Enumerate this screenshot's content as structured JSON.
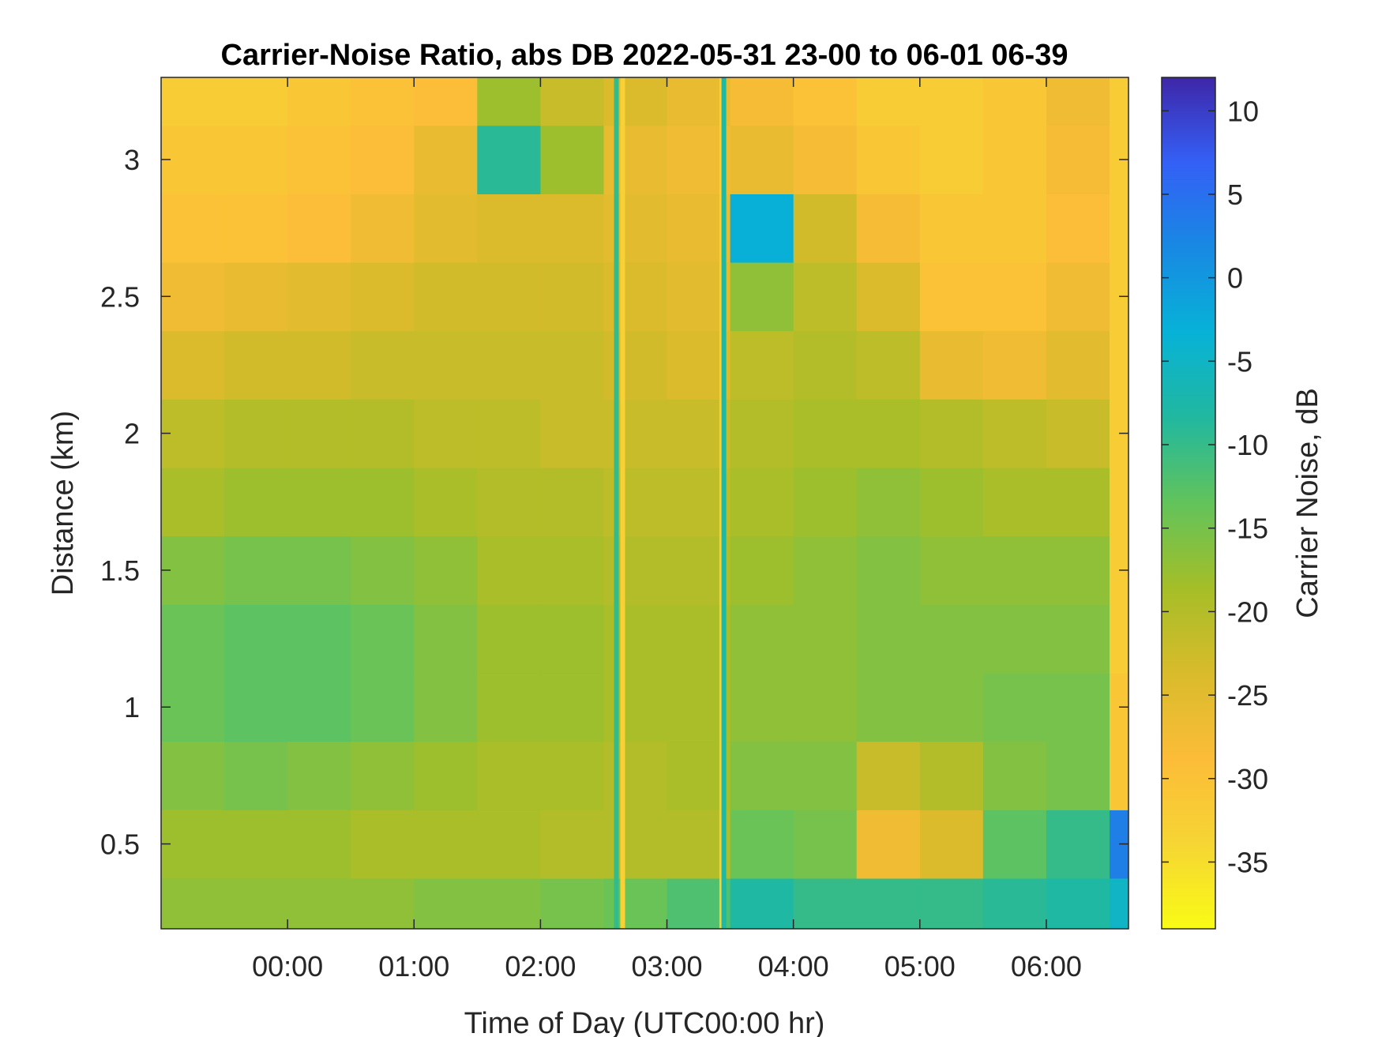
{
  "chart_data": {
    "type": "heatmap",
    "title": "Carrier-Noise Ratio, abs DB 2022-05-31 23-00 to 06-01 06-39",
    "xlabel": "Time of Day (UTC00:00 hr)",
    "ylabel": "Distance (km)",
    "colorbar_label": "Carrier Noise, dB",
    "xlim": [
      "2022-05-31 23:00",
      "2022-06-01 06:39"
    ],
    "ylim": [
      0.19,
      3.3
    ],
    "clim": [
      -39,
      12
    ],
    "x_ticks": [
      "00:00",
      "01:00",
      "02:00",
      "03:00",
      "04:00",
      "05:00",
      "06:00"
    ],
    "y_ticks": [
      "0.5",
      "1",
      "1.5",
      "2",
      "2.5",
      "3"
    ],
    "colorbar_ticks": [
      "10",
      "5",
      "0",
      "-5",
      "-10",
      "-15",
      "-20",
      "-25",
      "-30",
      "-35"
    ],
    "colormap": "parula-reversed",
    "time_hours": [
      23.0,
      23.5,
      0.0,
      0.5,
      1.0,
      1.5,
      2.0,
      2.5,
      3.0,
      3.5,
      4.0,
      4.5,
      5.0,
      5.5,
      6.0,
      6.5
    ],
    "distance_km": [
      0.25,
      0.5,
      0.75,
      1.0,
      1.25,
      1.5,
      1.75,
      2.0,
      2.25,
      2.5,
      2.75,
      3.0,
      3.25
    ],
    "values_db": [
      [
        -17,
        -17,
        -17,
        -17,
        -16,
        -16,
        -15,
        -14,
        -12,
        -8,
        -10,
        -10,
        -10,
        -9,
        -8,
        -5
      ],
      [
        -18,
        -18,
        -18,
        -19,
        -19,
        -19,
        -20,
        -20,
        -20,
        -14,
        -15,
        -27,
        -24,
        -13,
        -10,
        3
      ],
      [
        -16,
        -15,
        -16,
        -17,
        -18,
        -19,
        -19,
        -20,
        -19,
        -16,
        -16,
        -22,
        -20,
        -16,
        -15,
        -31
      ],
      [
        -14,
        -13,
        -13,
        -14,
        -16,
        -18,
        -18,
        -19,
        -19,
        -17,
        -17,
        -16,
        -16,
        -15,
        -15,
        -31
      ],
      [
        -14,
        -13,
        -13,
        -14,
        -16,
        -18,
        -18,
        -19,
        -19,
        -17,
        -17,
        -16,
        -16,
        -16,
        -16,
        -32
      ],
      [
        -16,
        -15,
        -15,
        -16,
        -17,
        -19,
        -19,
        -20,
        -20,
        -18,
        -17,
        -16,
        -17,
        -17,
        -17,
        -32
      ],
      [
        -19,
        -18,
        -18,
        -18,
        -19,
        -20,
        -20,
        -21,
        -21,
        -19,
        -18,
        -17,
        -18,
        -19,
        -19,
        -32
      ],
      [
        -21,
        -20,
        -20,
        -20,
        -21,
        -21,
        -22,
        -22,
        -22,
        -20,
        -19,
        -19,
        -20,
        -21,
        -22,
        -32
      ],
      [
        -24,
        -23,
        -23,
        -22,
        -22,
        -22,
        -22,
        -23,
        -24,
        -21,
        -20,
        -21,
        -26,
        -27,
        -25,
        -32
      ],
      [
        -27,
        -26,
        -25,
        -24,
        -23,
        -23,
        -23,
        -24,
        -25,
        -17,
        -21,
        -24,
        -30,
        -30,
        -27,
        -32
      ],
      [
        -30,
        -30,
        -29,
        -27,
        -25,
        -24,
        -24,
        -25,
        -26,
        -3,
        -23,
        -28,
        -31,
        -31,
        -29,
        -32
      ],
      [
        -31,
        -31,
        -30,
        -29,
        -26,
        -9,
        -18,
        -26,
        -27,
        -26,
        -28,
        -31,
        -32,
        -31,
        -28,
        -32
      ],
      [
        -32,
        -32,
        -31,
        -30,
        -29,
        -18,
        -22,
        -24,
        -26,
        -28,
        -30,
        -32,
        -32,
        -31,
        -27,
        -32
      ]
    ],
    "vertical_stripes": [
      {
        "time": "02:36",
        "value_db": -10
      },
      {
        "time": "02:39",
        "value_db": -33
      },
      {
        "time": "03:26",
        "value_db": -33
      },
      {
        "time": "03:27",
        "value_db": -8
      }
    ],
    "grid": false
  }
}
